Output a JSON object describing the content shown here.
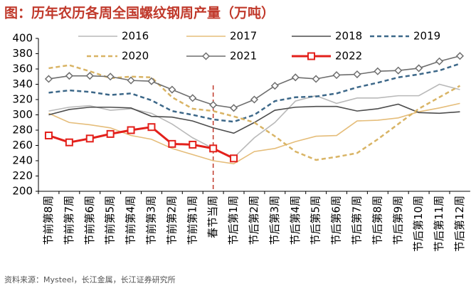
{
  "chart_data": {
    "type": "line",
    "title": "图：历年农历各周全国螺纹钢周产量（万吨）",
    "source": "资料来源：Mysteel，长江金属，长江证券研究所",
    "categories": [
      "节前第8周",
      "节前第7周",
      "节前第6周",
      "节前第5周",
      "节前第4周",
      "节前第3周",
      "节前第2周",
      "节前第1周",
      "春节当周",
      "节后第1周",
      "节后第2周",
      "节后第3周",
      "节后第4周",
      "节后第5周",
      "节后第6周",
      "节后第7周",
      "节后第8周",
      "节后第9周",
      "节后第10周",
      "节后第11周",
      "节后第12周"
    ],
    "ylim": [
      200,
      400
    ],
    "yticks": [
      200,
      220,
      240,
      260,
      280,
      300,
      320,
      340,
      360,
      380,
      400
    ],
    "vline_at": "春节当周",
    "series": [
      {
        "name": "2016",
        "color": "#b9b9b9",
        "style": "solid",
        "marker": "none",
        "values": [
          305,
          310,
          312,
          306,
          308,
          302,
          288,
          270,
          256,
          244,
          270,
          290,
          318,
          325,
          315,
          322,
          322,
          325,
          325,
          340,
          333
        ]
      },
      {
        "name": "2017",
        "color": "#e5bd7a",
        "style": "solid",
        "marker": "none",
        "values": [
          302,
          290,
          287,
          283,
          273,
          268,
          256,
          248,
          240,
          236,
          252,
          256,
          265,
          272,
          273,
          292,
          293,
          296,
          304,
          309,
          315
        ]
      },
      {
        "name": "2018",
        "color": "#4d4d4d",
        "style": "solid",
        "marker": "none",
        "values": [
          300,
          307,
          310,
          310,
          309,
          298,
          297,
          292,
          283,
          276,
          290,
          306,
          310,
          311,
          311,
          305,
          308,
          314,
          303,
          302,
          304
        ]
      },
      {
        "name": "2019",
        "color": "#3d6889",
        "style": "dashed",
        "marker": "none",
        "values": [
          329,
          332,
          330,
          326,
          328,
          319,
          305,
          300,
          294,
          291,
          300,
          318,
          323,
          324,
          328,
          336,
          342,
          349,
          353,
          358,
          367
        ]
      },
      {
        "name": "2020",
        "color": "#d9b465",
        "style": "dashed",
        "marker": "none",
        "values": [
          361,
          365,
          357,
          348,
          350,
          349,
          323,
          308,
          305,
          298,
          290,
          272,
          252,
          241,
          245,
          250,
          268,
          288,
          308,
          323,
          338
        ]
      },
      {
        "name": "2021",
        "color": "#6e6e6e",
        "style": "solid",
        "marker": "diamond",
        "values": [
          347,
          351,
          351,
          350,
          345,
          344,
          333,
          322,
          313,
          309,
          320,
          338,
          349,
          347,
          352,
          353,
          357,
          358,
          361,
          370,
          377
        ]
      },
      {
        "name": "2022",
        "color": "#e3201b",
        "style": "bold",
        "marker": "square",
        "values": [
          273,
          264,
          269,
          275,
          280,
          284,
          262,
          261,
          256,
          243,
          null,
          null,
          null,
          null,
          null,
          null,
          null,
          null,
          null,
          null,
          null
        ]
      }
    ]
  }
}
